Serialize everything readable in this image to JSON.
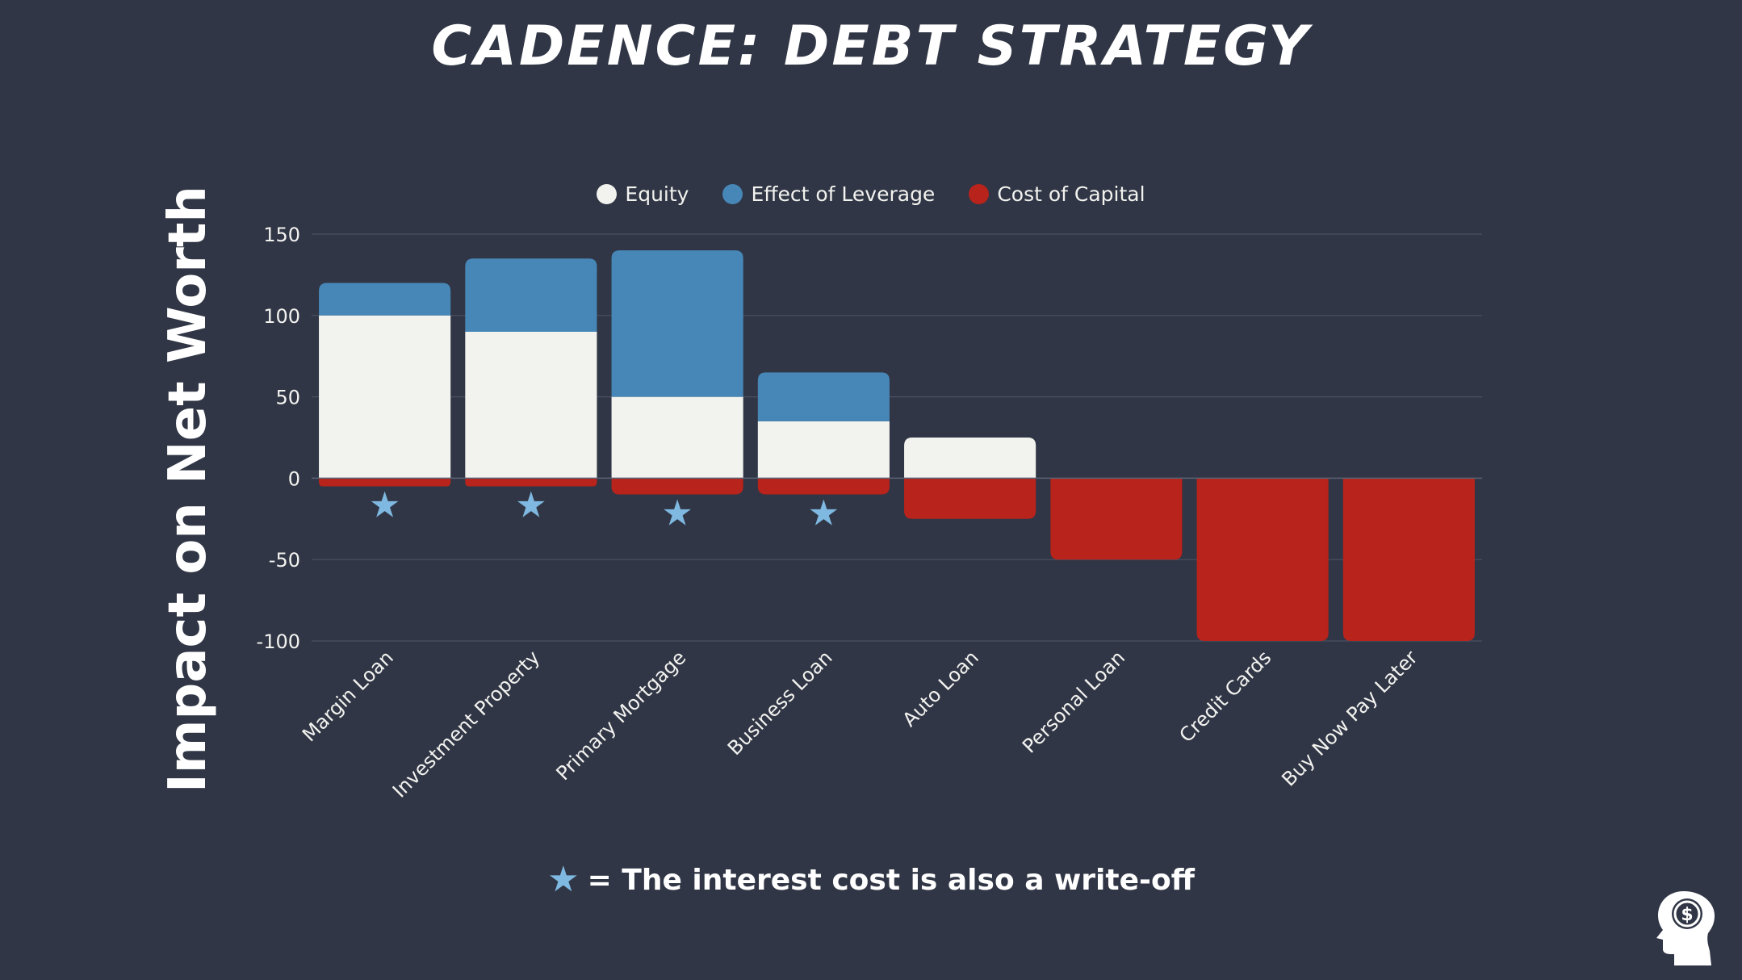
{
  "colors": {
    "background": "#303645",
    "equity": "#f2f2ee",
    "leverage": "#4787b8",
    "cost": "#b8231c",
    "star": "#7fb8e0",
    "grid": "#4a5162",
    "text": "#ffffff"
  },
  "footnote": {
    "star_icon": "star-icon",
    "text": "= The interest cost is also a write-off"
  },
  "logo_icon": "head-dollar-icon",
  "chart_data": {
    "type": "bar",
    "stacked": true,
    "title": "CADENCE: DEBT STRATEGY",
    "xlabel": "",
    "ylabel": "Impact on Net Worth",
    "ylim": [
      -100,
      150
    ],
    "yticks": [
      150,
      100,
      50,
      0,
      -50,
      -100
    ],
    "grid": true,
    "legend_position": "top-center",
    "categories": [
      "Margin Loan",
      "Investment Property",
      "Primary Mortgage",
      "Business Loan",
      "Auto Loan",
      "Personal Loan",
      "Credit Cards",
      "Buy Now Pay Later"
    ],
    "series": [
      {
        "name": "Equity",
        "color": "#f2f2ee",
        "values": [
          100,
          90,
          50,
          35,
          25,
          0,
          0,
          0
        ]
      },
      {
        "name": "Effect of Leverage",
        "color": "#4787b8",
        "values": [
          20,
          45,
          90,
          30,
          0,
          0,
          0,
          0
        ]
      },
      {
        "name": "Cost of Capital",
        "color": "#b8231c",
        "values": [
          -5,
          -5,
          -10,
          -10,
          -25,
          -50,
          -100,
          -100
        ]
      }
    ],
    "write_off": [
      true,
      true,
      true,
      true,
      false,
      false,
      false,
      false
    ]
  }
}
